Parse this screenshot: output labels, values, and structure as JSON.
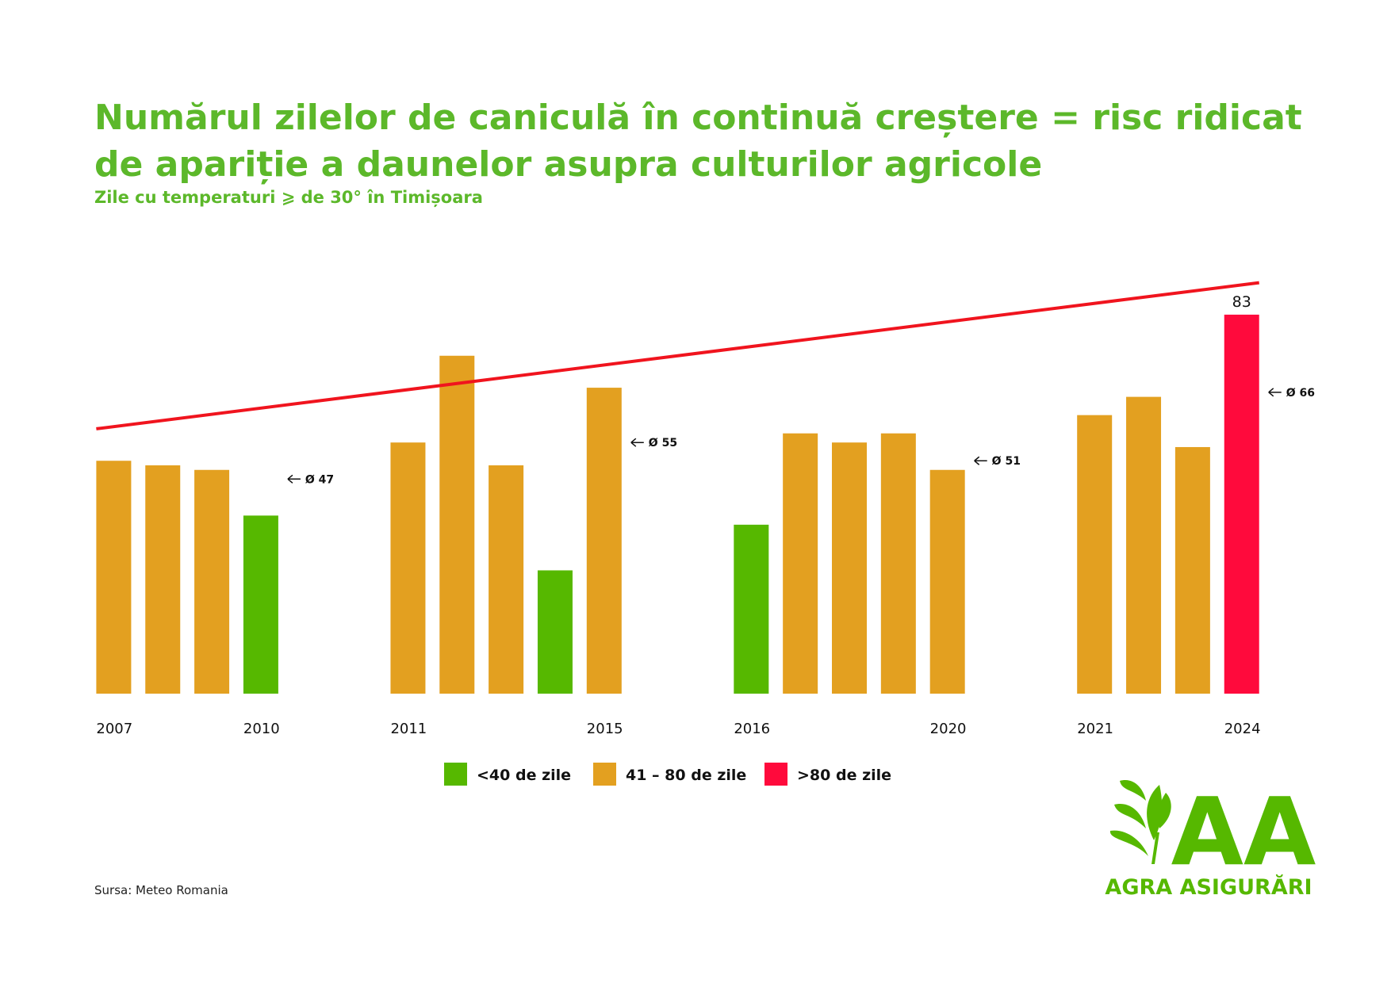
{
  "chart_data": {
    "type": "bar",
    "title": [
      "Numărul zilelor de caniculă în continuă creștere = risc ridicat",
      "de apariție a daunelor asupra culturilor agricole"
    ],
    "subtitle": "Zile cu temperaturi ⩾ de 30° în Timișoara",
    "ylim": [
      0,
      100
    ],
    "groups": [
      {
        "categories": [
          "2007",
          null,
          null,
          "2010"
        ],
        "values": [
          51,
          50,
          49,
          39
        ],
        "colors": [
          "#e3a020",
          "#e3a020",
          "#e3a020",
          "#56b800"
        ],
        "average": {
          "value": 47,
          "label": "Ø 47"
        }
      },
      {
        "categories": [
          "2011",
          null,
          null,
          null,
          "2015"
        ],
        "values": [
          55,
          74,
          50,
          27,
          67
        ],
        "colors": [
          "#e3a020",
          "#e3a020",
          "#e3a020",
          "#56b800",
          "#e3a020"
        ],
        "average": {
          "value": 55,
          "label": "Ø 55"
        }
      },
      {
        "categories": [
          "2016",
          null,
          null,
          null,
          "2020"
        ],
        "values": [
          37,
          57,
          55,
          57,
          49
        ],
        "colors": [
          "#56b800",
          "#e3a020",
          "#e3a020",
          "#e3a020",
          "#e3a020"
        ],
        "average": {
          "value": 51,
          "label": "Ø 51"
        }
      },
      {
        "categories": [
          "2021",
          null,
          null,
          "2024"
        ],
        "values": [
          61,
          65,
          54,
          83
        ],
        "colors": [
          "#e3a020",
          "#e3a020",
          "#e3a020",
          "#ff0a3c"
        ],
        "value_labels": [
          null,
          null,
          null,
          "83"
        ],
        "average": {
          "value": 66,
          "label": "Ø 66"
        }
      }
    ],
    "trend": {
      "start": 58,
      "end": 90,
      "color": "#f0141e"
    },
    "legend": [
      {
        "label": "<40 de zile",
        "color": "#56b800"
      },
      {
        "label": "41 – 80 de zile",
        "color": "#e3a020"
      },
      {
        "label": ">80 de zile",
        "color": "#ff0a3c"
      }
    ],
    "source": "Sursa: Meteo Romania"
  },
  "logo": {
    "mark": "AA",
    "name": "AGRA ASIGURĂRI"
  }
}
